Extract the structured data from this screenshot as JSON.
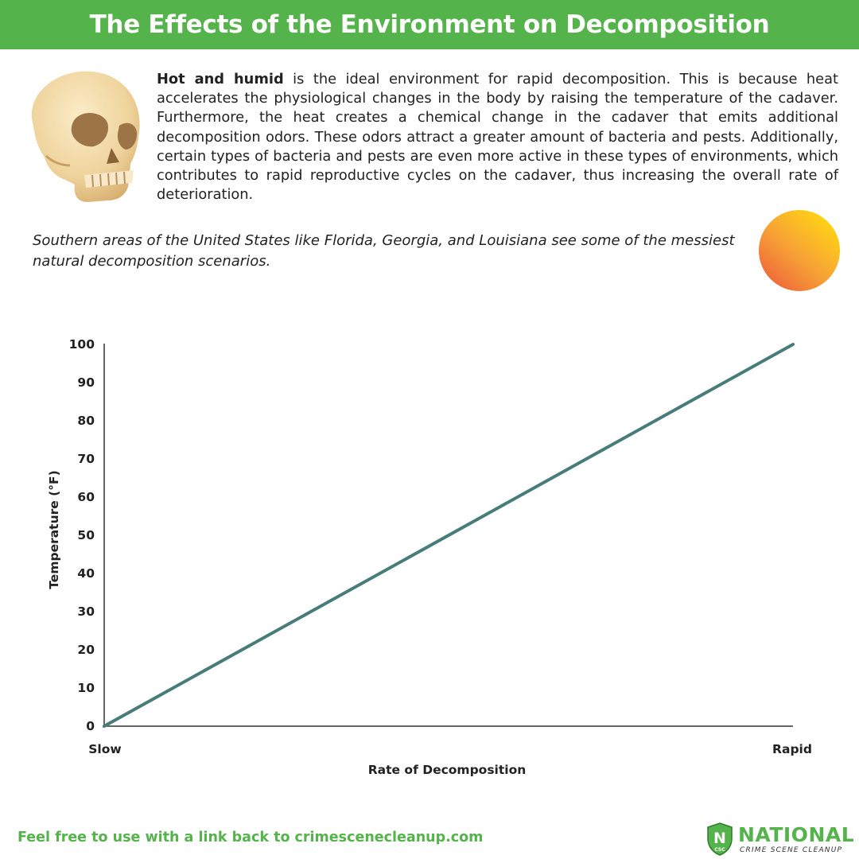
{
  "header": {
    "title": "The Effects of the Environment on Decomposition"
  },
  "intro": {
    "lead": "Hot and humid",
    "text": " is the ideal environment for rapid decomposition. This is because heat accelerates the physiological changes in the body by raising the temperature of the cadaver. Furthermore, the heat creates a chemical change in the cadaver that emits additional decomposition odors. These odors attract a greater amount of bacteria and pests. Additionally, certain types of bacteria and pests are even more active in these types of environments, which contributes to rapid reproductive cycles on the cadaver, thus increasing the overall rate of deterioration."
  },
  "note": "Southern areas of the United States like Florida, Georgia, and Louisiana see some of the messiest natural decomposition scenarios.",
  "icons": {
    "illustration": "skull-icon",
    "weather": "sun-icon"
  },
  "chart_data": {
    "type": "line",
    "title": "",
    "xlabel": "Rate of Decomposition",
    "ylabel": "Temperature (°F)",
    "x_tick_labels": [
      "Slow",
      "Rapid"
    ],
    "y_ticks": [
      0,
      10,
      20,
      30,
      40,
      50,
      60,
      70,
      80,
      90,
      100
    ],
    "ylim": [
      0,
      100
    ],
    "grid": false,
    "series": [
      {
        "points": [
          [
            "Slow",
            0
          ],
          [
            "Rapid",
            100
          ]
        ]
      }
    ]
  },
  "footer": {
    "link_text": "Feel free to use with a link back to crimescenecleanup.com",
    "logo_word": "NATIONAL",
    "logo_tagline": "CRIME SCENE CLEANUP",
    "logo_badge": "N",
    "logo_badge_small": "CSC"
  },
  "colors": {
    "brand_green": "#55b34b",
    "line": "#477c7a",
    "axis": "#333333",
    "text": "#222222"
  }
}
